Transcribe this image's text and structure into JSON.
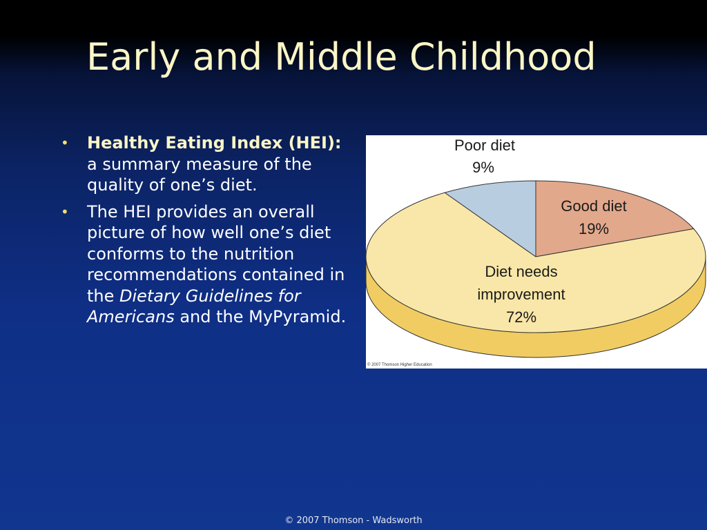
{
  "slide": {
    "title": "Early and Middle Childhood",
    "bullets": [
      {
        "term": "Healthy Eating Index (HEI):",
        "text": " a summary measure of the quality of one’s diet."
      },
      {
        "text_before": "The HEI provides an overall picture of how well one’s diet conforms to the nutrition recommendations contained in the ",
        "emphasis": "Dietary Guidelines for Americans",
        "text_after": " and the MyPyramid."
      }
    ],
    "footer": "© 2007 Thomson - Wadsworth"
  },
  "chart_data": {
    "type": "pie",
    "style": "3d",
    "slices": [
      {
        "label": "Good diet",
        "value": 19,
        "display": "19%",
        "color": "#e2a88c"
      },
      {
        "label": "Diet needs improvement",
        "label_lines": [
          "Diet needs",
          "improvement"
        ],
        "value": 72,
        "display": "72%",
        "color": "#f8e7a8",
        "side_color": "#f0cc63"
      },
      {
        "label": "Poor diet",
        "value": 9,
        "display": "9%",
        "color": "#b9cde0"
      }
    ],
    "copyright": "© 2007 Thomson Higher Education"
  },
  "colors": {
    "title": "#fbf6c6",
    "bullet_marker": "#f2df6a",
    "body_text": "#ffffff"
  }
}
